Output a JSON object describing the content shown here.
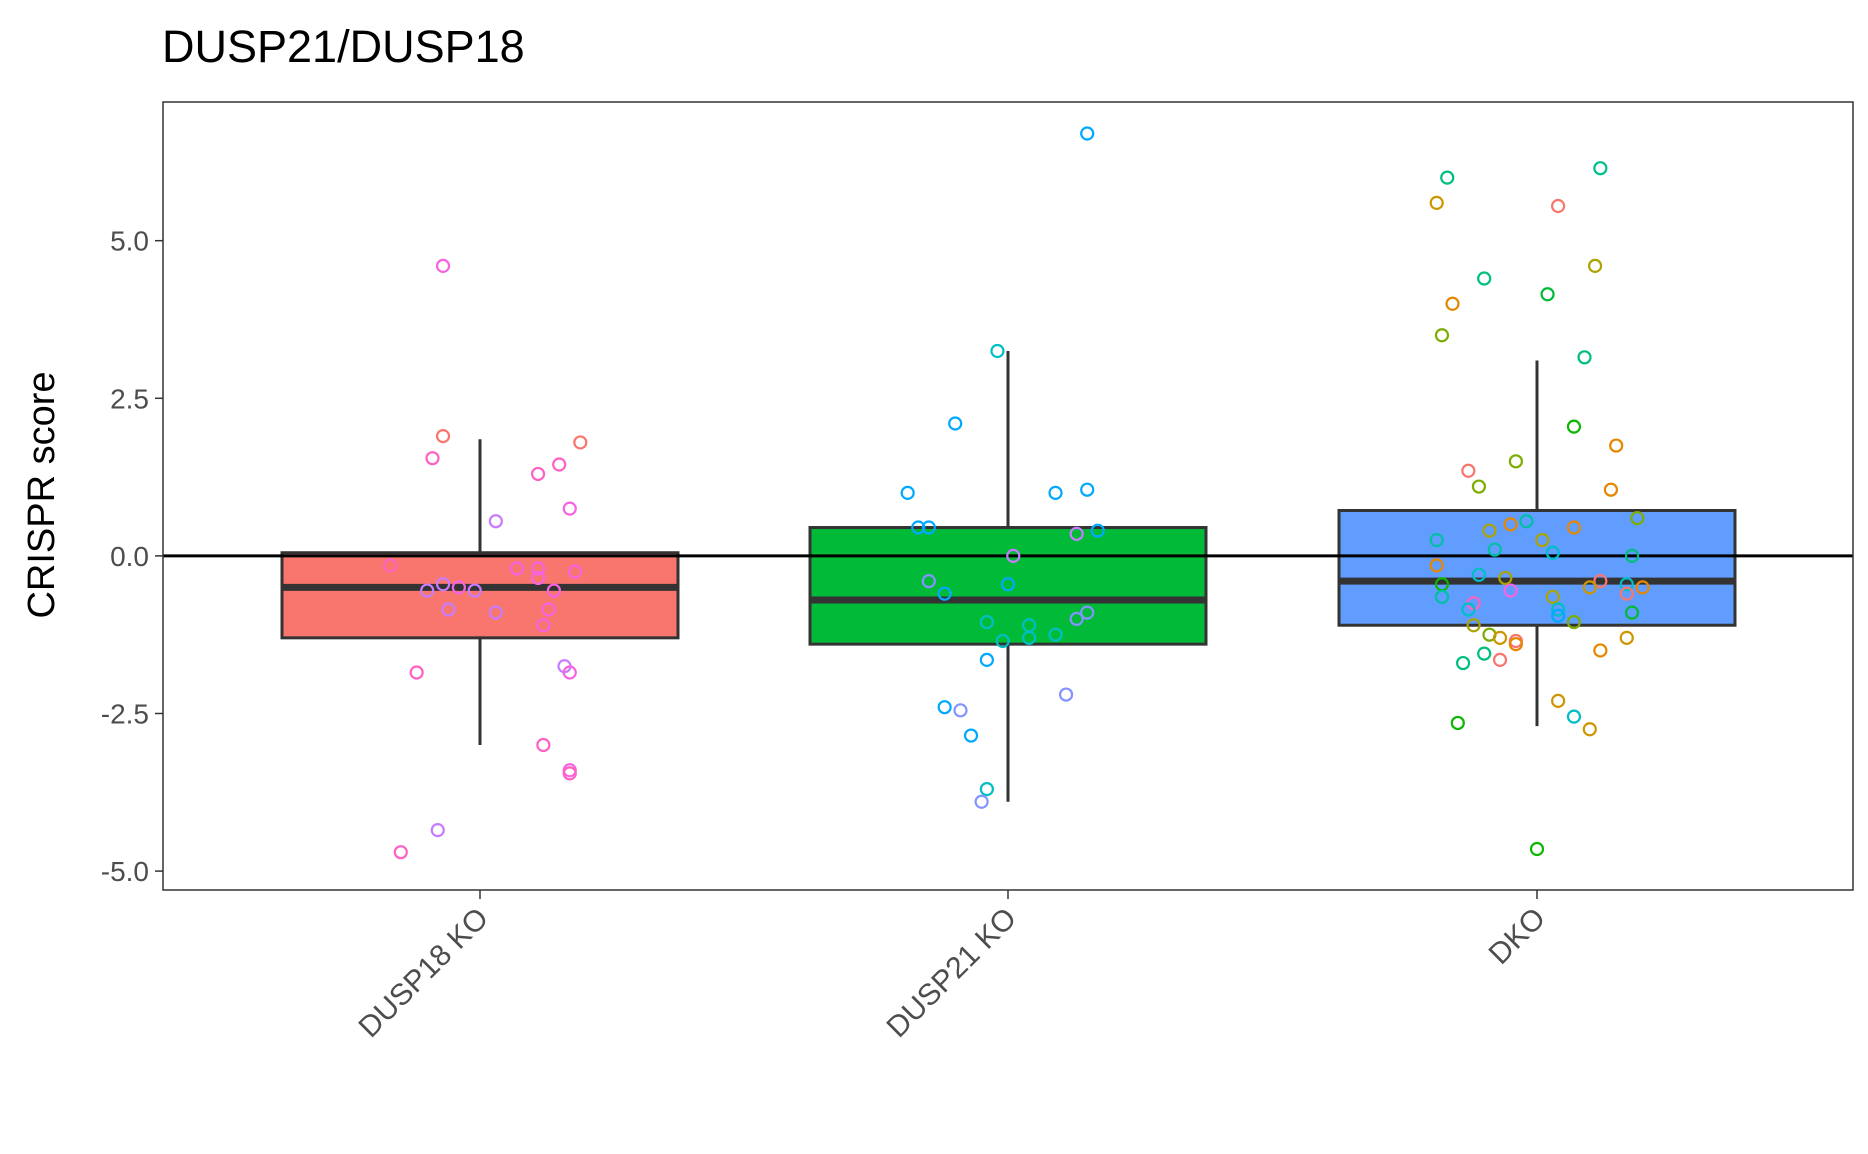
{
  "chart_data": {
    "type": "box",
    "title": "DUSP21/DUSP18",
    "xlabel": "",
    "ylabel": "CRISPR score",
    "ylim": [
      -5.3,
      7.2
    ],
    "yticks": [
      5.0,
      2.5,
      0.0,
      -2.5,
      -5.0
    ],
    "ytick_labels": [
      "5.0",
      "2.5",
      "0.0",
      "-2.5",
      "-5.0"
    ],
    "reference_line": 0,
    "grid": false,
    "categories": [
      "DUSP18 KO",
      "DUSP21 KO",
      "DKO"
    ],
    "boxes": [
      {
        "category": "DUSP18 KO",
        "fill": "#F8766D",
        "whisker_low": -3.0,
        "q1": -1.3,
        "median": -0.5,
        "q3": 0.05,
        "whisker_high": 1.85
      },
      {
        "category": "DUSP21 KO",
        "fill": "#00BA38",
        "whisker_low": -3.9,
        "q1": -1.4,
        "median": -0.7,
        "q3": 0.45,
        "whisker_high": 3.25
      },
      {
        "category": "DKO",
        "fill": "#619CFF",
        "whisker_low": -2.7,
        "q1": -1.1,
        "median": -0.4,
        "q3": 0.72,
        "whisker_high": 3.1
      }
    ],
    "points": [
      {
        "category": "DUSP18 KO",
        "jitter": -0.07,
        "y": 4.6,
        "color": "#F564E3"
      },
      {
        "category": "DUSP18 KO",
        "jitter": -0.07,
        "y": 1.9,
        "color": "#F8766D"
      },
      {
        "category": "DUSP18 KO",
        "jitter": -0.09,
        "y": 1.55,
        "color": "#FF61C3"
      },
      {
        "category": "DUSP18 KO",
        "jitter": 0.19,
        "y": 1.8,
        "color": "#F8766D"
      },
      {
        "category": "DUSP18 KO",
        "jitter": 0.15,
        "y": 1.45,
        "color": "#FF61C3"
      },
      {
        "category": "DUSP18 KO",
        "jitter": 0.11,
        "y": 1.3,
        "color": "#FF61C3"
      },
      {
        "category": "DUSP18 KO",
        "jitter": 0.17,
        "y": 0.75,
        "color": "#F564E3"
      },
      {
        "category": "DUSP18 KO",
        "jitter": 0.03,
        "y": 0.55,
        "color": "#C77CFF"
      },
      {
        "category": "DUSP18 KO",
        "jitter": -0.17,
        "y": -0.15,
        "color": "#FF61C3"
      },
      {
        "category": "DUSP18 KO",
        "jitter": 0.07,
        "y": -0.2,
        "color": "#F564E3"
      },
      {
        "category": "DUSP18 KO",
        "jitter": 0.11,
        "y": -0.2,
        "color": "#F564E3"
      },
      {
        "category": "DUSP18 KO",
        "jitter": 0.18,
        "y": -0.25,
        "color": "#F564E3"
      },
      {
        "category": "DUSP18 KO",
        "jitter": 0.11,
        "y": -0.35,
        "color": "#F564E3"
      },
      {
        "category": "DUSP18 KO",
        "jitter": -0.07,
        "y": -0.45,
        "color": "#C77CFF"
      },
      {
        "category": "DUSP18 KO",
        "jitter": -0.04,
        "y": -0.5,
        "color": "#F564E3"
      },
      {
        "category": "DUSP18 KO",
        "jitter": -0.01,
        "y": -0.55,
        "color": "#C77CFF"
      },
      {
        "category": "DUSP18 KO",
        "jitter": -0.1,
        "y": -0.55,
        "color": "#C77CFF"
      },
      {
        "category": "DUSP18 KO",
        "jitter": 0.14,
        "y": -0.55,
        "color": "#F564E3"
      },
      {
        "category": "DUSP18 KO",
        "jitter": -0.06,
        "y": -0.85,
        "color": "#C77CFF"
      },
      {
        "category": "DUSP18 KO",
        "jitter": 0.03,
        "y": -0.9,
        "color": "#C77CFF"
      },
      {
        "category": "DUSP18 KO",
        "jitter": 0.13,
        "y": -0.85,
        "color": "#F564E3"
      },
      {
        "category": "DUSP18 KO",
        "jitter": 0.12,
        "y": -1.1,
        "color": "#F564E3"
      },
      {
        "category": "DUSP18 KO",
        "jitter": -0.12,
        "y": -1.85,
        "color": "#FF61C3"
      },
      {
        "category": "DUSP18 KO",
        "jitter": 0.16,
        "y": -1.75,
        "color": "#C77CFF"
      },
      {
        "category": "DUSP18 KO",
        "jitter": 0.17,
        "y": -1.85,
        "color": "#F564E3"
      },
      {
        "category": "DUSP18 KO",
        "jitter": 0.12,
        "y": -3.0,
        "color": "#FF61C3"
      },
      {
        "category": "DUSP18 KO",
        "jitter": 0.17,
        "y": -3.4,
        "color": "#F564E3"
      },
      {
        "category": "DUSP18 KO",
        "jitter": 0.17,
        "y": -3.45,
        "color": "#FF61C3"
      },
      {
        "category": "DUSP18 KO",
        "jitter": -0.08,
        "y": -4.35,
        "color": "#C77CFF"
      },
      {
        "category": "DUSP18 KO",
        "jitter": -0.15,
        "y": -4.7,
        "color": "#FF61C3"
      },
      {
        "category": "DUSP21 KO",
        "jitter": 0.15,
        "y": 6.7,
        "color": "#00A9FF"
      },
      {
        "category": "DUSP21 KO",
        "jitter": -0.02,
        "y": 3.25,
        "color": "#00BFC4"
      },
      {
        "category": "DUSP21 KO",
        "jitter": -0.1,
        "y": 2.1,
        "color": "#00A9FF"
      },
      {
        "category": "DUSP21 KO",
        "jitter": -0.19,
        "y": 1.0,
        "color": "#00A9FF"
      },
      {
        "category": "DUSP21 KO",
        "jitter": 0.09,
        "y": 1.0,
        "color": "#00A9FF"
      },
      {
        "category": "DUSP21 KO",
        "jitter": 0.15,
        "y": 1.05,
        "color": "#00A9FF"
      },
      {
        "category": "DUSP21 KO",
        "jitter": -0.17,
        "y": 0.45,
        "color": "#00A9FF"
      },
      {
        "category": "DUSP21 KO",
        "jitter": -0.15,
        "y": 0.45,
        "color": "#00A9FF"
      },
      {
        "category": "DUSP21 KO",
        "jitter": 0.17,
        "y": 0.4,
        "color": "#00A9FF"
      },
      {
        "category": "DUSP21 KO",
        "jitter": 0.13,
        "y": 0.35,
        "color": "#C77CFF"
      },
      {
        "category": "DUSP21 KO",
        "jitter": 0.01,
        "y": 0.0,
        "color": "#C77CFF"
      },
      {
        "category": "DUSP21 KO",
        "jitter": -0.15,
        "y": -0.4,
        "color": "#8494FF"
      },
      {
        "category": "DUSP21 KO",
        "jitter": -0.12,
        "y": -0.6,
        "color": "#00A9FF"
      },
      {
        "category": "DUSP21 KO",
        "jitter": 0.0,
        "y": -0.45,
        "color": "#00A9FF"
      },
      {
        "category": "DUSP21 KO",
        "jitter": -0.04,
        "y": -1.05,
        "color": "#00BFC4"
      },
      {
        "category": "DUSP21 KO",
        "jitter": 0.04,
        "y": -1.1,
        "color": "#00BFC4"
      },
      {
        "category": "DUSP21 KO",
        "jitter": 0.04,
        "y": -1.3,
        "color": "#00BFC4"
      },
      {
        "category": "DUSP21 KO",
        "jitter": -0.01,
        "y": -1.35,
        "color": "#00BFC4"
      },
      {
        "category": "DUSP21 KO",
        "jitter": 0.09,
        "y": -1.25,
        "color": "#00BFC4"
      },
      {
        "category": "DUSP21 KO",
        "jitter": 0.13,
        "y": -1.0,
        "color": "#8494FF"
      },
      {
        "category": "DUSP21 KO",
        "jitter": 0.15,
        "y": -0.9,
        "color": "#8494FF"
      },
      {
        "category": "DUSP21 KO",
        "jitter": -0.04,
        "y": -1.65,
        "color": "#00A9FF"
      },
      {
        "category": "DUSP21 KO",
        "jitter": 0.11,
        "y": -2.2,
        "color": "#8494FF"
      },
      {
        "category": "DUSP21 KO",
        "jitter": -0.12,
        "y": -2.4,
        "color": "#00A9FF"
      },
      {
        "category": "DUSP21 KO",
        "jitter": -0.09,
        "y": -2.45,
        "color": "#8494FF"
      },
      {
        "category": "DUSP21 KO",
        "jitter": -0.07,
        "y": -2.85,
        "color": "#00A9FF"
      },
      {
        "category": "DUSP21 KO",
        "jitter": -0.04,
        "y": -3.7,
        "color": "#00BFC4"
      },
      {
        "category": "DUSP21 KO",
        "jitter": -0.05,
        "y": -3.9,
        "color": "#8494FF"
      },
      {
        "category": "DKO",
        "jitter": 0.12,
        "y": 6.15,
        "color": "#00C08B"
      },
      {
        "category": "DKO",
        "jitter": -0.17,
        "y": 6.0,
        "color": "#00BF7D"
      },
      {
        "category": "DKO",
        "jitter": -0.19,
        "y": 5.6,
        "color": "#CD9600"
      },
      {
        "category": "DKO",
        "jitter": 0.04,
        "y": 5.55,
        "color": "#F8766D"
      },
      {
        "category": "DKO",
        "jitter": 0.11,
        "y": 4.6,
        "color": "#ABA300"
      },
      {
        "category": "DKO",
        "jitter": -0.1,
        "y": 4.4,
        "color": "#00BF7D"
      },
      {
        "category": "DKO",
        "jitter": 0.02,
        "y": 4.15,
        "color": "#00BA38"
      },
      {
        "category": "DKO",
        "jitter": -0.16,
        "y": 4.0,
        "color": "#E58700"
      },
      {
        "category": "DKO",
        "jitter": -0.18,
        "y": 3.5,
        "color": "#7CAE00"
      },
      {
        "category": "DKO",
        "jitter": 0.09,
        "y": 3.15,
        "color": "#00BF7D"
      },
      {
        "category": "DKO",
        "jitter": 0.07,
        "y": 2.05,
        "color": "#0CB702"
      },
      {
        "category": "DKO",
        "jitter": 0.15,
        "y": 1.75,
        "color": "#E58700"
      },
      {
        "category": "DKO",
        "jitter": -0.04,
        "y": 1.5,
        "color": "#7CAE00"
      },
      {
        "category": "DKO",
        "jitter": -0.13,
        "y": 1.35,
        "color": "#F8766D"
      },
      {
        "category": "DKO",
        "jitter": -0.11,
        "y": 1.1,
        "color": "#7CAE00"
      },
      {
        "category": "DKO",
        "jitter": 0.14,
        "y": 1.05,
        "color": "#E58700"
      },
      {
        "category": "DKO",
        "jitter": 0.19,
        "y": 0.6,
        "color": "#7CAE00"
      },
      {
        "category": "DKO",
        "jitter": -0.02,
        "y": 0.55,
        "color": "#00C1A3"
      },
      {
        "category": "DKO",
        "jitter": -0.05,
        "y": 0.5,
        "color": "#E58700"
      },
      {
        "category": "DKO",
        "jitter": 0.07,
        "y": 0.45,
        "color": "#E58700"
      },
      {
        "category": "DKO",
        "jitter": -0.09,
        "y": 0.4,
        "color": "#ABA300"
      },
      {
        "category": "DKO",
        "jitter": -0.19,
        "y": 0.25,
        "color": "#00C1A3"
      },
      {
        "category": "DKO",
        "jitter": 0.01,
        "y": 0.25,
        "color": "#ABA300"
      },
      {
        "category": "DKO",
        "jitter": -0.08,
        "y": 0.1,
        "color": "#00C1A3"
      },
      {
        "category": "DKO",
        "jitter": 0.03,
        "y": 0.05,
        "color": "#00BFC4"
      },
      {
        "category": "DKO",
        "jitter": 0.18,
        "y": 0.0,
        "color": "#00BF7D"
      },
      {
        "category": "DKO",
        "jitter": -0.19,
        "y": -0.15,
        "color": "#E58700"
      },
      {
        "category": "DKO",
        "jitter": -0.11,
        "y": -0.3,
        "color": "#00BFC4"
      },
      {
        "category": "DKO",
        "jitter": -0.06,
        "y": -0.35,
        "color": "#ABA300"
      },
      {
        "category": "DKO",
        "jitter": 0.12,
        "y": -0.4,
        "color": "#F8766D"
      },
      {
        "category": "DKO",
        "jitter": -0.18,
        "y": -0.45,
        "color": "#0CB702"
      },
      {
        "category": "DKO",
        "jitter": 0.17,
        "y": -0.45,
        "color": "#00BFC4"
      },
      {
        "category": "DKO",
        "jitter": 0.2,
        "y": -0.5,
        "color": "#E58700"
      },
      {
        "category": "DKO",
        "jitter": 0.1,
        "y": -0.5,
        "color": "#CD9600"
      },
      {
        "category": "DKO",
        "jitter": -0.05,
        "y": -0.55,
        "color": "#F564E3"
      },
      {
        "category": "DKO",
        "jitter": 0.17,
        "y": -0.6,
        "color": "#F8766D"
      },
      {
        "category": "DKO",
        "jitter": 0.03,
        "y": -0.65,
        "color": "#ABA300"
      },
      {
        "category": "DKO",
        "jitter": -0.18,
        "y": -0.65,
        "color": "#00C1A3"
      },
      {
        "category": "DKO",
        "jitter": -0.12,
        "y": -0.75,
        "color": "#FF61C3"
      },
      {
        "category": "DKO",
        "jitter": -0.13,
        "y": -0.85,
        "color": "#00BFC4"
      },
      {
        "category": "DKO",
        "jitter": 0.04,
        "y": -0.85,
        "color": "#00BFC4"
      },
      {
        "category": "DKO",
        "jitter": 0.04,
        "y": -0.95,
        "color": "#00A9FF"
      },
      {
        "category": "DKO",
        "jitter": 0.18,
        "y": -0.9,
        "color": "#00BA38"
      },
      {
        "category": "DKO",
        "jitter": 0.07,
        "y": -1.05,
        "color": "#7CAE00"
      },
      {
        "category": "DKO",
        "jitter": -0.12,
        "y": -1.1,
        "color": "#ABA300"
      },
      {
        "category": "DKO",
        "jitter": -0.09,
        "y": -1.25,
        "color": "#7CAE00"
      },
      {
        "category": "DKO",
        "jitter": -0.07,
        "y": -1.3,
        "color": "#CD9600"
      },
      {
        "category": "DKO",
        "jitter": -0.04,
        "y": -1.35,
        "color": "#F8766D"
      },
      {
        "category": "DKO",
        "jitter": -0.04,
        "y": -1.4,
        "color": "#E58700"
      },
      {
        "category": "DKO",
        "jitter": 0.17,
        "y": -1.3,
        "color": "#CD9600"
      },
      {
        "category": "DKO",
        "jitter": 0.12,
        "y": -1.5,
        "color": "#E58700"
      },
      {
        "category": "DKO",
        "jitter": -0.1,
        "y": -1.55,
        "color": "#00BF7D"
      },
      {
        "category": "DKO",
        "jitter": -0.07,
        "y": -1.65,
        "color": "#F8766D"
      },
      {
        "category": "DKO",
        "jitter": -0.14,
        "y": -1.7,
        "color": "#00BF7D"
      },
      {
        "category": "DKO",
        "jitter": 0.04,
        "y": -2.3,
        "color": "#CD9600"
      },
      {
        "category": "DKO",
        "jitter": 0.07,
        "y": -2.55,
        "color": "#00BFC4"
      },
      {
        "category": "DKO",
        "jitter": -0.15,
        "y": -2.65,
        "color": "#0CB702"
      },
      {
        "category": "DKO",
        "jitter": 0.1,
        "y": -2.75,
        "color": "#CD9600"
      },
      {
        "category": "DKO",
        "jitter": 0.0,
        "y": -4.65,
        "color": "#0CB702"
      }
    ]
  }
}
